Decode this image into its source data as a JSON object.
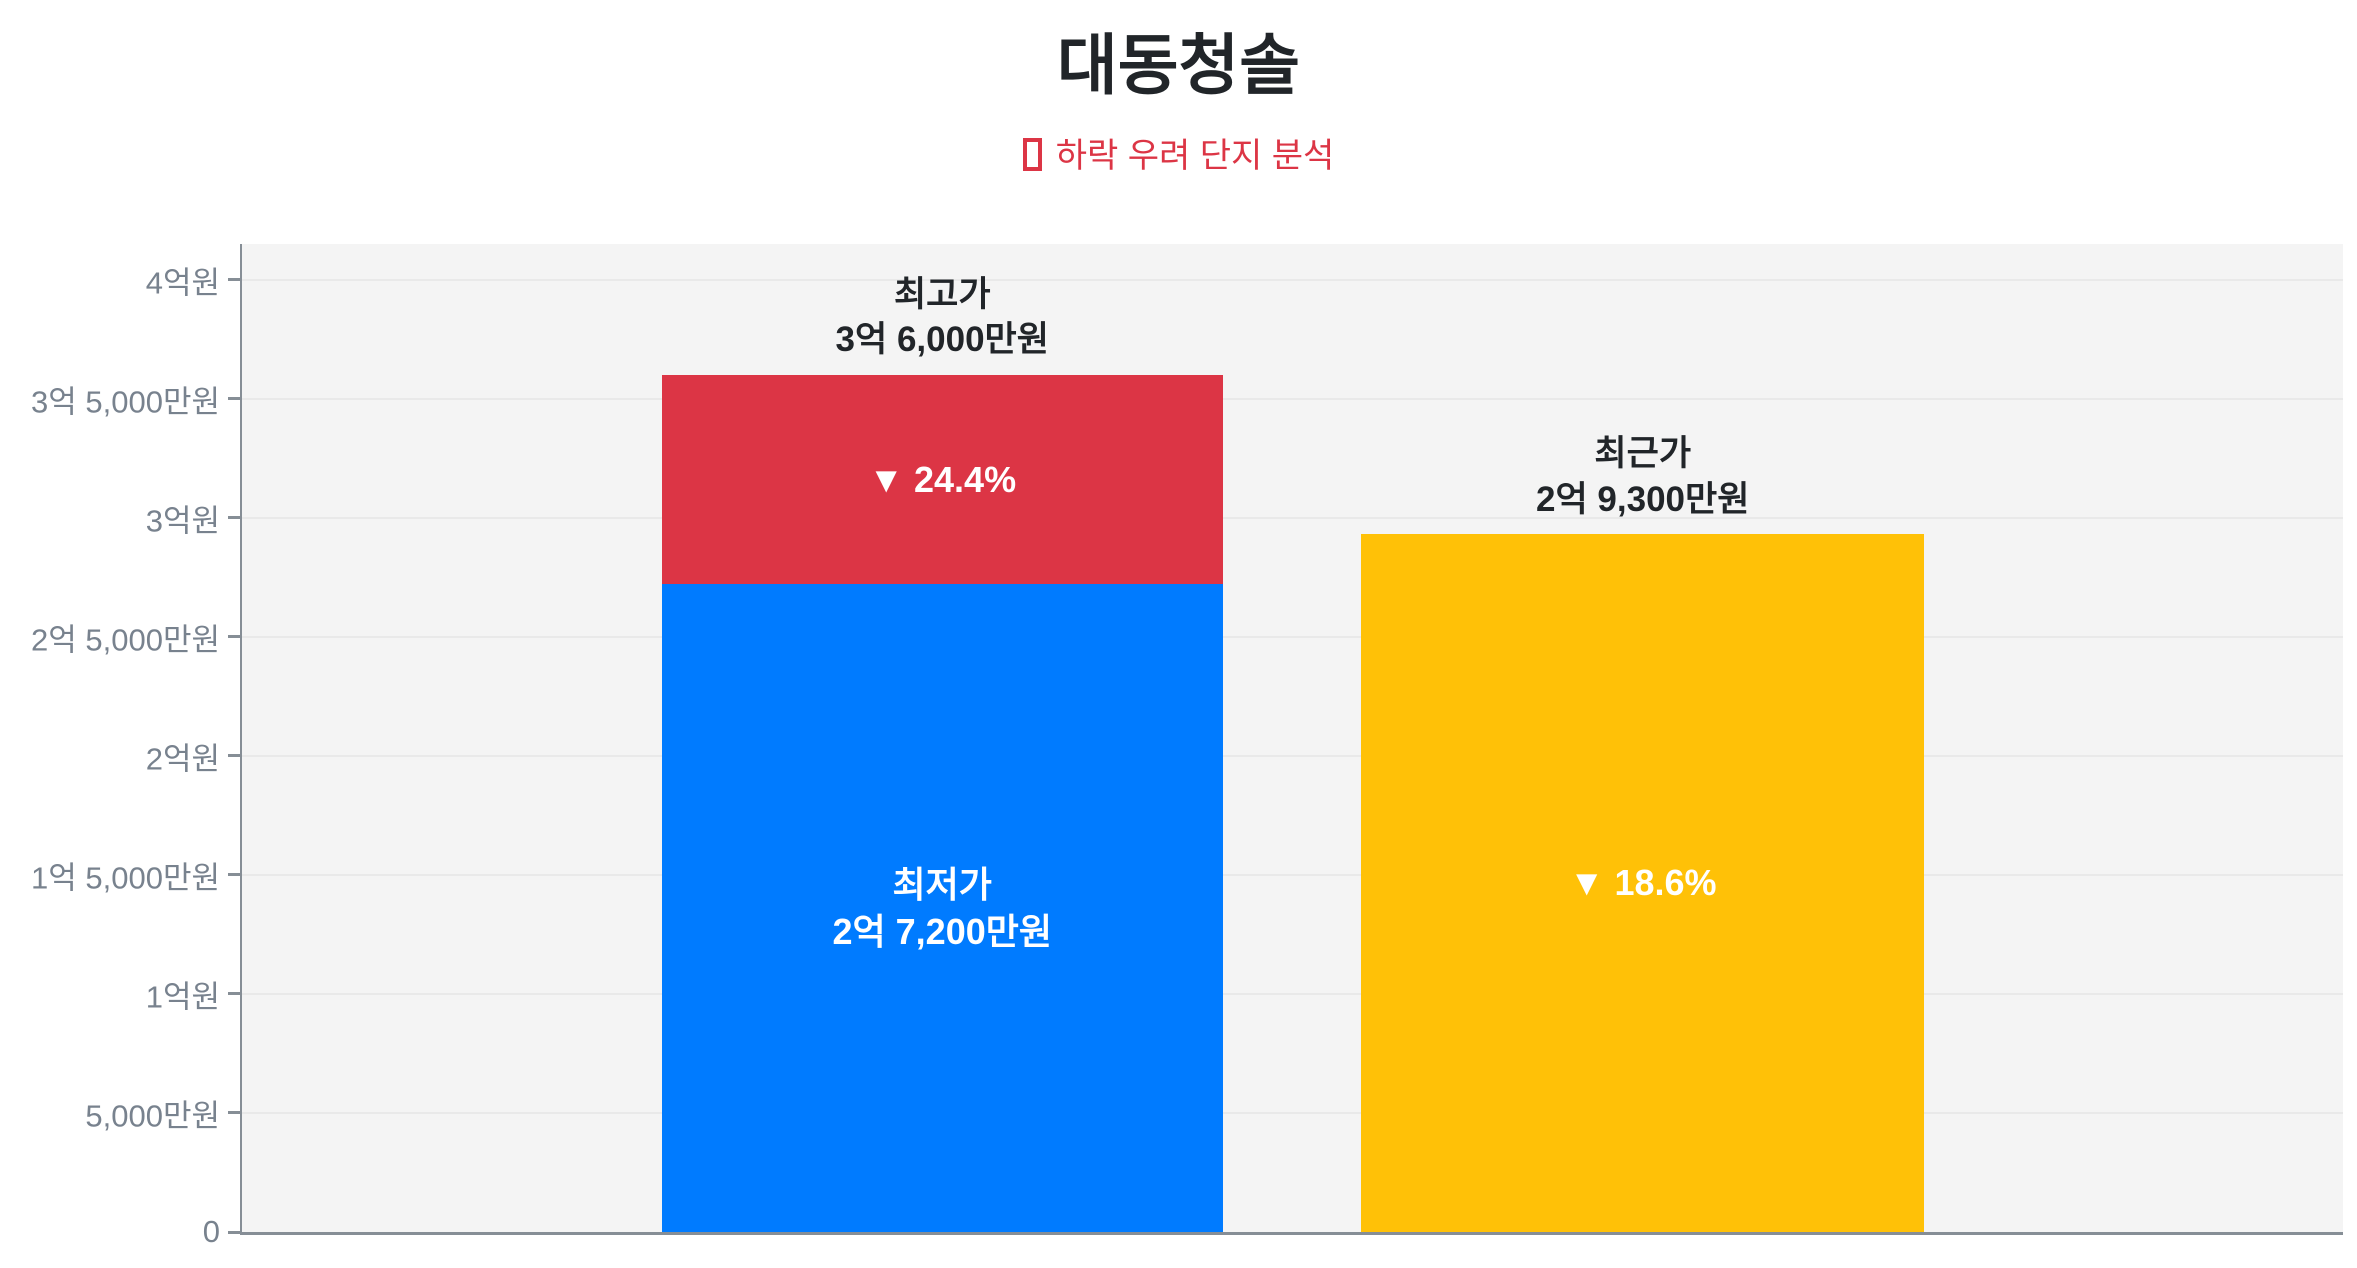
{
  "header": {
    "title": "대동청솔",
    "subtitle_icon": "□",
    "subtitle_text": "하락 우려 단지 분석"
  },
  "colors": {
    "title": "#212529",
    "subtitle": "#dc3545",
    "plot_background": "#f4f4f4",
    "gridline": "#e9e9e9",
    "axis_line": "#868e96",
    "tick_label": "#78828e",
    "bar_blue": "#007bff",
    "bar_red": "#dc3545",
    "bar_yellow": "#ffc107",
    "bar_text": "#ffffff"
  },
  "chart_data": {
    "type": "bar",
    "stacked": true,
    "title": "대동청솔",
    "subtitle": "□ 하락 우려 단지 분석",
    "unit": "만원",
    "ylim": [
      0,
      41500
    ],
    "grid": true,
    "legend": false,
    "y_ticks": [
      {
        "value": 0,
        "label": "0"
      },
      {
        "value": 5000,
        "label": "5,000만원"
      },
      {
        "value": 10000,
        "label": "1억원"
      },
      {
        "value": 15000,
        "label": "1억 5,000만원"
      },
      {
        "value": 20000,
        "label": "2억원"
      },
      {
        "value": 25000,
        "label": "2억 5,000만원"
      },
      {
        "value": 30000,
        "label": "3억원"
      },
      {
        "value": 35000,
        "label": "3억 5,000만원"
      },
      {
        "value": 40000,
        "label": "4억원"
      }
    ],
    "bars": [
      {
        "id": "peak-vs-lowest-bar",
        "center_pct": 33.33,
        "width_pct": 26.7,
        "annotation": [
          "최고가",
          "3억 6,000만원"
        ],
        "annotation_value": 36000,
        "segments": [
          {
            "id": "lowest-price-segment",
            "from": 0,
            "to": 27200,
            "color": "#007bff",
            "text_color": "#ffffff",
            "text_lines": [
              "최저가",
              "2억 7,200만원"
            ]
          },
          {
            "id": "drop-from-peak-segment",
            "from": 27200,
            "to": 36000,
            "color": "#dc3545",
            "text_color": "#ffffff",
            "text_lines": [
              "▼ 24.4%"
            ]
          }
        ]
      },
      {
        "id": "recent-price-bar",
        "center_pct": 66.67,
        "width_pct": 26.8,
        "annotation": [
          "최근가",
          "2억 9,300만원"
        ],
        "annotation_value": 29300,
        "segments": [
          {
            "id": "recent-price-segment",
            "from": 0,
            "to": 29300,
            "color": "#ffc107",
            "text_color": "#ffffff",
            "text_lines": [
              "▼ 18.6%"
            ]
          }
        ]
      }
    ]
  }
}
